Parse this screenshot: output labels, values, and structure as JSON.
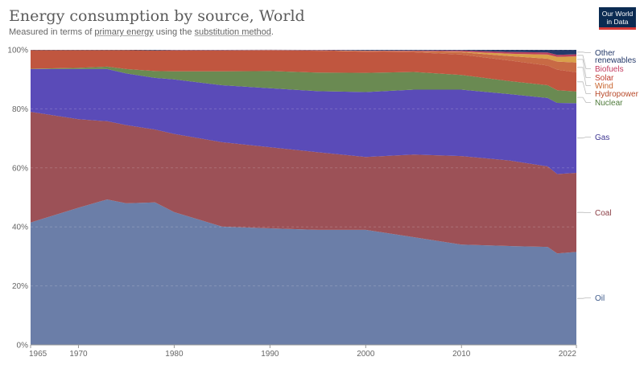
{
  "header": {
    "title": "Energy consumption by source, World",
    "subtitle_prefix": "Measured in terms of ",
    "subtitle_link1": "primary energy",
    "subtitle_mid": " using the ",
    "subtitle_link2": "substitution method",
    "subtitle_suffix": ".",
    "logo_line1": "Our World",
    "logo_line2": "in Data"
  },
  "colors": {
    "oil": "#6b7ea8",
    "coal": "#9c5157",
    "gas": "#5a4bb8",
    "nuclear": "#6a8a52",
    "hydropower": "#c0563f",
    "wind": "#c86a45",
    "solar": "#d9a04a",
    "biofuels": "#b9405e",
    "other_renewables": "#253a6a"
  },
  "chart_data": {
    "type": "area",
    "stacked": true,
    "relative": true,
    "x": [
      1965,
      1970,
      1973,
      1975,
      1978,
      1980,
      1985,
      1990,
      1995,
      2000,
      2005,
      2010,
      2015,
      2019,
      2020,
      2022
    ],
    "x_ticks": [
      1965,
      1970,
      1980,
      1990,
      2000,
      2010,
      2022
    ],
    "ylim": [
      0,
      100
    ],
    "y_ticks": [
      {
        "value": 0,
        "label": "0%"
      },
      {
        "value": 20,
        "label": "20%"
      },
      {
        "value": 40,
        "label": "40%"
      },
      {
        "value": 60,
        "label": "60%"
      },
      {
        "value": 80,
        "label": "80%"
      },
      {
        "value": 100,
        "label": "100%"
      }
    ],
    "series": [
      {
        "name": "Oil",
        "key": "oil",
        "values": [
          41.5,
          46.5,
          49.3,
          48.0,
          48.3,
          45.0,
          40.1,
          39.5,
          39.0,
          39.0,
          36.5,
          34.0,
          33.5,
          33.2,
          31.0,
          31.5
        ]
      },
      {
        "name": "Coal",
        "key": "coal",
        "values": [
          37.5,
          30.0,
          26.5,
          26.5,
          24.7,
          26.5,
          28.6,
          27.5,
          26.3,
          24.7,
          28.0,
          30.0,
          29.0,
          27.3,
          26.9,
          26.8
        ]
      },
      {
        "name": "Gas",
        "key": "gas",
        "values": [
          14.5,
          17.0,
          17.7,
          17.5,
          17.5,
          18.5,
          19.3,
          20.0,
          20.7,
          22.0,
          22.0,
          22.5,
          22.5,
          23.2,
          24.1,
          23.6
        ]
      },
      {
        "name": "Nuclear",
        "key": "nuclear",
        "values": [
          0.1,
          0.4,
          0.8,
          1.5,
          2.3,
          2.7,
          4.7,
          5.8,
          6.3,
          6.5,
          6.0,
          5.0,
          4.4,
          4.3,
          4.3,
          4.0
        ]
      },
      {
        "name": "Hydropower",
        "key": "hydropower",
        "values": [
          6.3,
          6.0,
          5.6,
          6.4,
          7.0,
          7.1,
          7.1,
          7.0,
          7.4,
          7.2,
          6.7,
          6.9,
          7.0,
          6.7,
          7.0,
          6.5
        ]
      },
      {
        "name": "Wind",
        "key": "wind",
        "values": [
          0,
          0,
          0,
          0,
          0,
          0,
          0,
          0.05,
          0.1,
          0.2,
          0.3,
          0.8,
          1.5,
          2.3,
          2.7,
          3.3
        ]
      },
      {
        "name": "Solar",
        "key": "solar",
        "values": [
          0,
          0,
          0,
          0,
          0,
          0,
          0,
          0,
          0,
          0.05,
          0.05,
          0.2,
          0.8,
          1.4,
          1.6,
          2.1
        ]
      },
      {
        "name": "Biofuels",
        "key": "biofuels",
        "values": [
          0,
          0,
          0,
          0,
          0,
          0.1,
          0.1,
          0.1,
          0.1,
          0.1,
          0.2,
          0.4,
          0.6,
          0.7,
          0.7,
          0.7
        ]
      },
      {
        "name": "Other renewables",
        "key": "other_renewables",
        "values": [
          0.1,
          0.1,
          0.1,
          0.1,
          0.2,
          0.1,
          0.1,
          0.1,
          0.1,
          0.25,
          0.25,
          0.2,
          0.7,
          0.9,
          1.7,
          1.5
        ]
      }
    ],
    "legend_position": "right",
    "legend_labels": [
      {
        "key": "other_renewables",
        "lines": [
          "Other",
          "renewables"
        ],
        "color": "#253a6a"
      },
      {
        "key": "biofuels",
        "lines": [
          "Biofuels"
        ],
        "color": "#c33a5f"
      },
      {
        "key": "solar",
        "lines": [
          "Solar"
        ],
        "color": "#c0392b"
      },
      {
        "key": "wind",
        "lines": [
          "Wind"
        ],
        "color": "#c8642d"
      },
      {
        "key": "hydropower",
        "lines": [
          "Hydropower"
        ],
        "color": "#b84a2a"
      },
      {
        "key": "nuclear",
        "lines": [
          "Nuclear"
        ],
        "color": "#4e7a3a"
      },
      {
        "key": "gas",
        "lines": [
          "Gas"
        ],
        "color": "#3d3591"
      },
      {
        "key": "coal",
        "lines": [
          "Coal"
        ],
        "color": "#8a3d44"
      },
      {
        "key": "oil",
        "lines": [
          "Oil"
        ],
        "color": "#3e5a8a"
      }
    ]
  }
}
